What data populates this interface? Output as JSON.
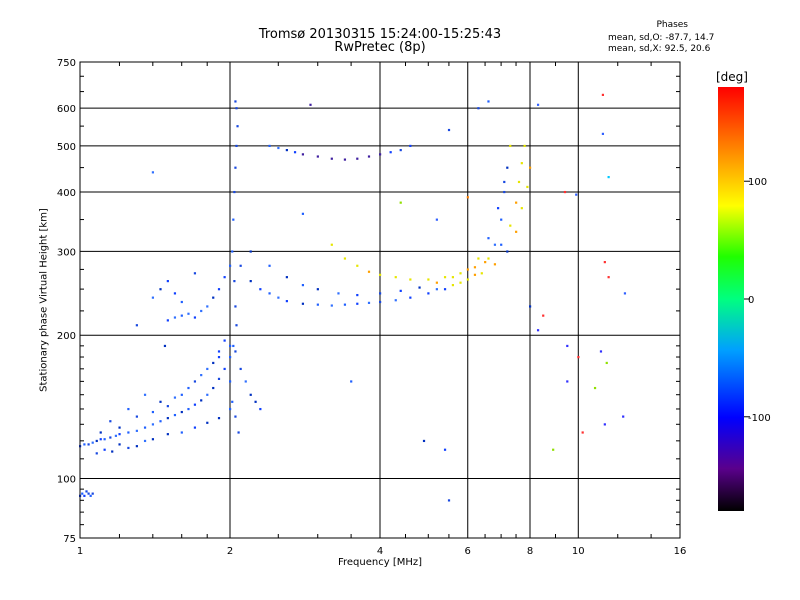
{
  "header": {
    "title": "Tromsø 20130315 15:24:00-15:25:43",
    "subtitle": "RwPretec (8p)",
    "phase_title": "Phases",
    "phase_line1": "mean, sd,O: -87.7, 14.7",
    "phase_line2": "mean, sd,X:  92.5, 20.6"
  },
  "colorbar": {
    "unit_label": "[deg]",
    "ticks": [
      {
        "value": 100,
        "label": "100"
      },
      {
        "value": 0,
        "label": "0"
      },
      {
        "value": -100,
        "label": "-100"
      }
    ],
    "range": [
      -180,
      180
    ]
  },
  "chart_data": {
    "type": "scatter",
    "title": "Tromsø 20130315 15:24:00-15:25:43",
    "subtitle": "RwPretec (8p)",
    "xlabel": "Frequency [MHz]",
    "ylabel": "Stationary phase Virtual Height [km]",
    "x_scale": "log",
    "y_scale": "log",
    "xlim": [
      1,
      16
    ],
    "ylim": [
      75,
      750
    ],
    "x_ticks": [
      {
        "value": 1,
        "label": "1"
      },
      {
        "value": 2,
        "label": "2"
      },
      {
        "value": 4,
        "label": "4"
      },
      {
        "value": 6,
        "label": "6"
      },
      {
        "value": 8,
        "label": "8"
      },
      {
        "value": 10,
        "label": "10"
      },
      {
        "value": 16,
        "label": "16"
      }
    ],
    "y_ticks": [
      {
        "value": 75,
        "label": "75"
      },
      {
        "value": 100,
        "label": "100"
      },
      {
        "value": 200,
        "label": "200"
      },
      {
        "value": 300,
        "label": "300"
      },
      {
        "value": 400,
        "label": "400"
      },
      {
        "value": 500,
        "label": "500"
      },
      {
        "value": 600,
        "label": "600"
      },
      {
        "value": 750,
        "label": "750"
      }
    ],
    "grid": true,
    "color_scale": "phase in degrees (-180 to 180, rainbow)",
    "series": [
      {
        "points": [
          [
            1.0,
            92
          ],
          [
            1.01,
            93
          ],
          [
            1.02,
            92
          ],
          [
            1.03,
            94
          ],
          [
            1.04,
            93
          ],
          [
            1.05,
            92
          ],
          [
            1.06,
            93
          ],
          [
            1.0,
            117
          ],
          [
            1.02,
            118
          ],
          [
            1.04,
            118
          ],
          [
            1.06,
            119
          ],
          [
            1.08,
            120
          ],
          [
            1.1,
            121
          ],
          [
            1.12,
            121
          ],
          [
            1.15,
            122
          ],
          [
            1.18,
            123
          ],
          [
            1.2,
            124
          ],
          [
            1.25,
            125
          ],
          [
            1.3,
            126
          ],
          [
            1.35,
            128
          ],
          [
            1.4,
            130
          ],
          [
            1.45,
            132
          ],
          [
            1.5,
            134
          ],
          [
            1.55,
            136
          ],
          [
            1.6,
            138
          ],
          [
            1.65,
            140
          ],
          [
            1.7,
            143
          ],
          [
            1.75,
            146
          ],
          [
            1.8,
            150
          ],
          [
            1.85,
            155
          ],
          [
            1.9,
            162
          ],
          [
            1.95,
            170
          ],
          [
            2.0,
            180
          ],
          [
            1.08,
            113
          ],
          [
            1.12,
            115
          ],
          [
            1.16,
            114
          ],
          [
            1.2,
            118
          ],
          [
            1.25,
            116
          ],
          [
            1.3,
            117
          ],
          [
            1.35,
            120
          ],
          [
            1.4,
            121
          ],
          [
            1.5,
            124
          ],
          [
            1.6,
            125
          ],
          [
            1.7,
            128
          ],
          [
            1.8,
            131
          ],
          [
            1.9,
            134
          ],
          [
            2.0,
            140
          ],
          [
            1.1,
            125
          ],
          [
            1.15,
            132
          ],
          [
            1.2,
            128
          ],
          [
            1.25,
            140
          ],
          [
            1.3,
            135
          ],
          [
            1.35,
            150
          ],
          [
            1.4,
            138
          ],
          [
            1.45,
            145
          ],
          [
            1.5,
            142
          ],
          [
            1.55,
            148
          ],
          [
            1.6,
            150
          ],
          [
            1.65,
            155
          ],
          [
            1.7,
            160
          ],
          [
            1.75,
            165
          ],
          [
            1.8,
            170
          ],
          [
            1.85,
            175
          ],
          [
            1.9,
            185
          ],
          [
            1.95,
            195
          ],
          [
            2.0,
            190
          ],
          [
            2.05,
            185
          ],
          [
            2.1,
            170
          ],
          [
            2.15,
            160
          ],
          [
            2.2,
            150
          ],
          [
            2.25,
            145
          ],
          [
            2.3,
            140
          ],
          [
            1.5,
            215
          ],
          [
            1.55,
            218
          ],
          [
            1.6,
            220
          ],
          [
            1.65,
            222
          ],
          [
            1.7,
            218
          ],
          [
            1.75,
            225
          ],
          [
            1.8,
            230
          ],
          [
            1.85,
            240
          ],
          [
            1.9,
            250
          ],
          [
            1.95,
            265
          ],
          [
            2.0,
            280
          ],
          [
            1.4,
            240
          ],
          [
            1.45,
            250
          ],
          [
            1.5,
            260
          ],
          [
            1.55,
            245
          ],
          [
            1.6,
            235
          ],
          [
            1.7,
            270
          ],
          [
            2.02,
            300
          ],
          [
            2.03,
            350
          ],
          [
            2.04,
            400
          ],
          [
            2.05,
            450
          ],
          [
            2.06,
            500
          ],
          [
            2.07,
            550
          ],
          [
            2.06,
            600
          ],
          [
            2.05,
            620
          ],
          [
            2.04,
            260
          ],
          [
            2.05,
            230
          ],
          [
            2.06,
            210
          ],
          [
            2.03,
            190
          ],
          [
            2.0,
            160
          ],
          [
            2.02,
            145
          ],
          [
            2.05,
            135
          ],
          [
            2.08,
            125
          ],
          [
            2.1,
            280
          ],
          [
            2.2,
            260
          ],
          [
            2.3,
            250
          ],
          [
            2.4,
            245
          ],
          [
            2.5,
            240
          ],
          [
            2.6,
            236
          ],
          [
            2.8,
            233
          ],
          [
            3.0,
            232
          ],
          [
            3.2,
            231
          ],
          [
            3.4,
            232
          ],
          [
            3.6,
            233
          ],
          [
            3.8,
            234
          ],
          [
            4.0,
            235
          ],
          [
            4.3,
            237
          ],
          [
            4.6,
            240
          ],
          [
            5.0,
            245
          ],
          [
            5.4,
            250
          ],
          [
            5.8,
            258
          ],
          [
            6.2,
            268
          ],
          [
            6.5,
            285
          ],
          [
            6.8,
            310
          ],
          [
            7.0,
            350
          ],
          [
            7.1,
            400
          ],
          [
            7.2,
            450
          ],
          [
            7.3,
            500
          ],
          [
            2.2,
            300
          ],
          [
            2.4,
            280
          ],
          [
            2.6,
            265
          ],
          [
            2.8,
            255
          ],
          [
            3.0,
            250
          ],
          [
            3.3,
            245
          ],
          [
            3.6,
            243
          ],
          [
            4.0,
            245
          ],
          [
            4.4,
            248
          ],
          [
            4.8,
            252
          ],
          [
            5.2,
            258
          ],
          [
            5.6,
            265
          ],
          [
            6.0,
            275
          ],
          [
            6.3,
            290
          ],
          [
            6.6,
            320
          ],
          [
            6.9,
            370
          ],
          [
            7.1,
            420
          ],
          [
            2.4,
            500
          ],
          [
            2.5,
            495
          ],
          [
            2.6,
            490
          ],
          [
            2.7,
            485
          ],
          [
            2.8,
            480
          ],
          [
            3.0,
            475
          ],
          [
            3.2,
            470
          ],
          [
            3.4,
            468
          ],
          [
            3.6,
            470
          ],
          [
            3.8,
            475
          ],
          [
            4.0,
            480
          ],
          [
            4.2,
            485
          ],
          [
            4.4,
            490
          ],
          [
            4.6,
            500
          ],
          [
            3.2,
            310
          ],
          [
            3.4,
            290
          ],
          [
            3.6,
            280
          ],
          [
            3.8,
            272
          ],
          [
            4.0,
            268
          ],
          [
            4.3,
            265
          ],
          [
            4.6,
            262
          ],
          [
            5.0,
            262
          ],
          [
            5.4,
            265
          ],
          [
            5.8,
            270
          ],
          [
            6.2,
            278
          ],
          [
            6.6,
            290
          ],
          [
            7.0,
            310
          ],
          [
            7.3,
            340
          ],
          [
            7.5,
            380
          ],
          [
            7.6,
            420
          ],
          [
            7.7,
            460
          ],
          [
            7.8,
            500
          ],
          [
            5.2,
            250
          ],
          [
            5.6,
            255
          ],
          [
            6.0,
            262
          ],
          [
            6.4,
            270
          ],
          [
            6.8,
            282
          ],
          [
            7.2,
            300
          ],
          [
            7.5,
            330
          ],
          [
            7.7,
            370
          ],
          [
            7.9,
            410
          ],
          [
            8.0,
            450
          ],
          [
            2.9,
            610
          ],
          [
            5.5,
            540
          ],
          [
            6.3,
            600
          ],
          [
            6.6,
            620
          ],
          [
            8.3,
            610
          ],
          [
            11.2,
            640
          ],
          [
            11.2,
            530
          ],
          [
            11.5,
            430
          ],
          [
            9.4,
            400
          ],
          [
            9.9,
            395
          ],
          [
            11.3,
            285
          ],
          [
            11.5,
            265
          ],
          [
            6.0,
            390
          ],
          [
            4.4,
            380
          ],
          [
            5.2,
            350
          ],
          [
            8.0,
            230
          ],
          [
            8.5,
            220
          ],
          [
            8.3,
            205
          ],
          [
            9.5,
            190
          ],
          [
            10.0,
            180
          ],
          [
            11.1,
            185
          ],
          [
            11.4,
            175
          ],
          [
            9.5,
            160
          ],
          [
            10.8,
            155
          ],
          [
            11.3,
            130
          ],
          [
            10.2,
            125
          ],
          [
            12.3,
            135
          ],
          [
            8.9,
            115
          ],
          [
            4.9,
            120
          ],
          [
            5.4,
            115
          ],
          [
            5.5,
            90
          ],
          [
            1.4,
            440
          ],
          [
            1.3,
            210
          ],
          [
            1.48,
            190
          ],
          [
            1.9,
            180
          ],
          [
            2.8,
            360
          ],
          [
            3.5,
            160
          ],
          [
            12.4,
            245
          ]
        ]
      }
    ]
  }
}
